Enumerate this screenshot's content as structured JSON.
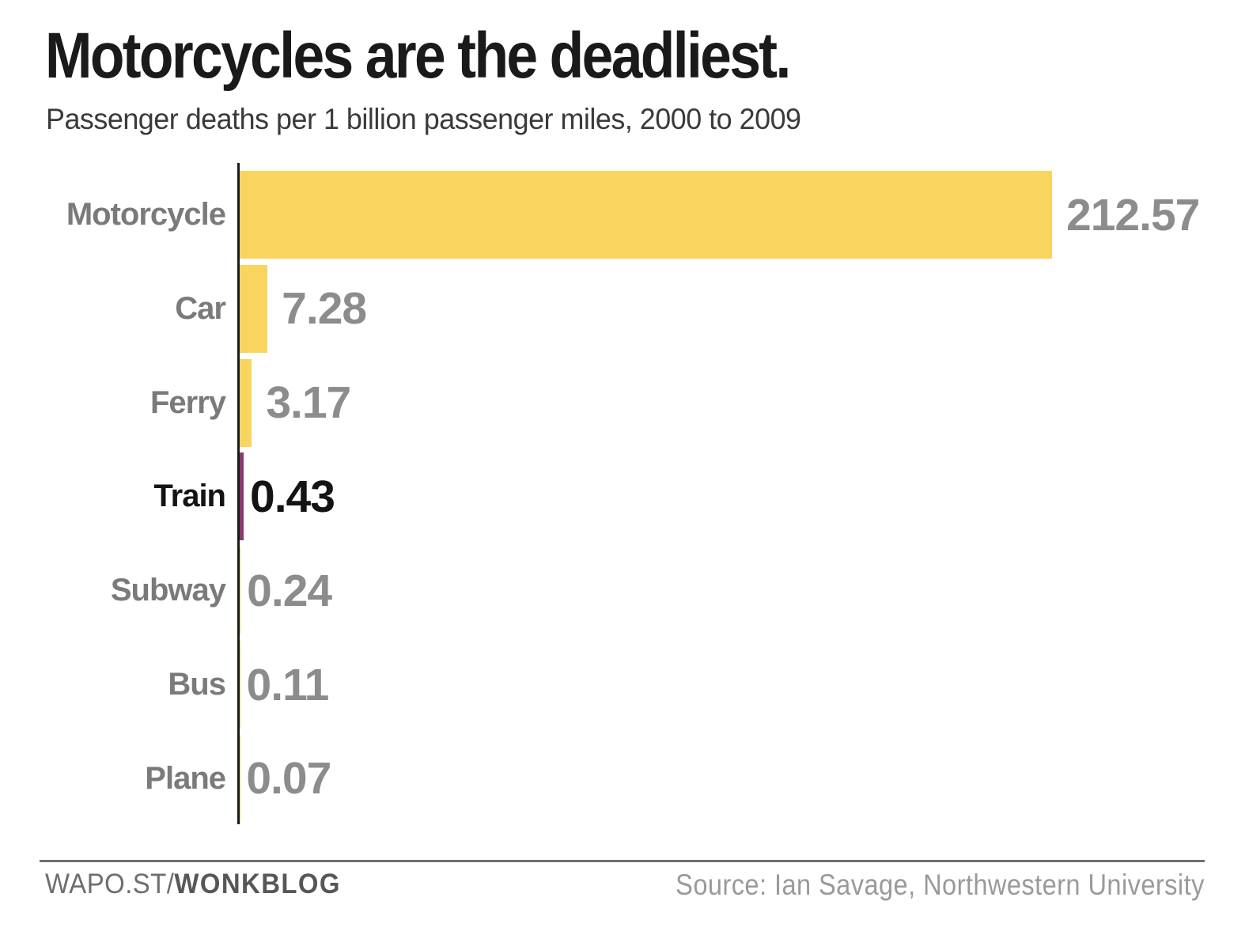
{
  "header": {
    "title": "Motorcycles are the deadliest.",
    "subtitle": "Passenger deaths per 1 billion passenger miles, 2000 to 2009"
  },
  "footer": {
    "brand_prefix": "WAPO.ST/",
    "brand_bold": "WONKBLOG",
    "source": "Source: Ian Savage, Northwestern University"
  },
  "colors": {
    "bar_yellow": "#F9D45F",
    "bar_highlight_purple": "#8B3A70",
    "text_gray": "#8C8C8C",
    "label_gray": "#7A7A7A",
    "text_black": "#141414",
    "axis_black": "#1A1A1A"
  },
  "chart_data": {
    "type": "bar",
    "orientation": "horizontal",
    "title": "Motorcycles are the deadliest.",
    "subtitle": "Passenger deaths per 1 billion passenger miles, 2000 to 2009",
    "categories": [
      "Motorcycle",
      "Car",
      "Ferry",
      "Train",
      "Subway",
      "Bus",
      "Plane"
    ],
    "values": [
      212.57,
      7.28,
      3.17,
      0.43,
      0.24,
      0.11,
      0.07
    ],
    "value_labels": [
      "212.57",
      "7.28",
      "3.17",
      "0.43",
      "0.24",
      "0.11",
      "0.07"
    ],
    "highlighted_category": "Train",
    "xlim": [
      0,
      212.57
    ],
    "grid": "off",
    "legend": "none",
    "axis_note": "single vertical baseline at x=0, value labels at bar ends, category labels at left"
  }
}
